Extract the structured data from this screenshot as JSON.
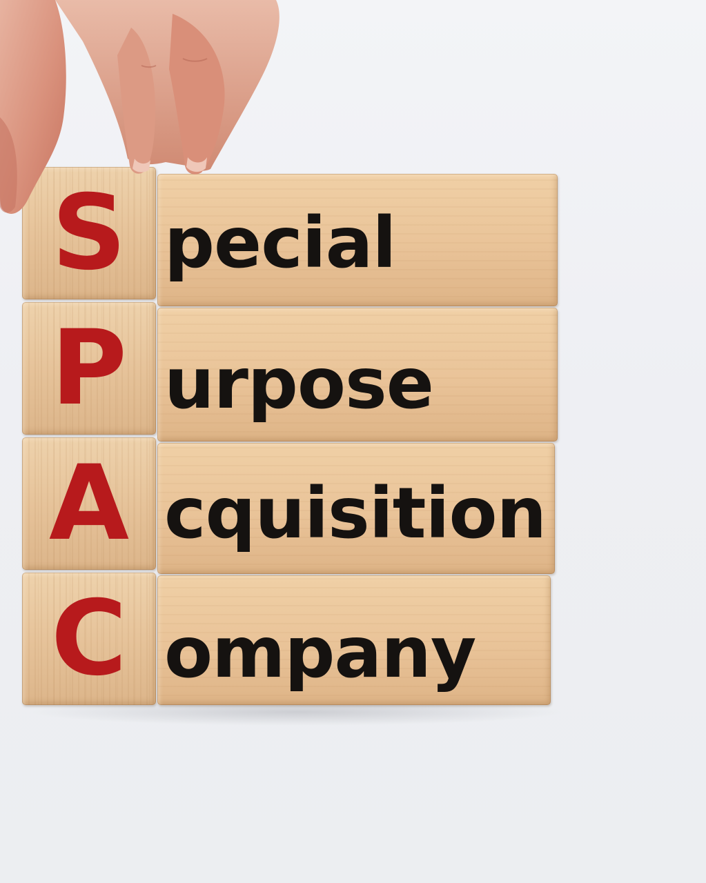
{
  "blocks": [
    {
      "letter": "S",
      "word": "pecial"
    },
    {
      "letter": "P",
      "word": "urpose"
    },
    {
      "letter": "A",
      "word": "cquisition"
    },
    {
      "letter": "C",
      "word": "ompany"
    }
  ],
  "colors": {
    "background": "#eff0f3",
    "wood": "#e8c59b",
    "letter_red": "#b71a1c",
    "word_dark": "#151210"
  },
  "icons": [
    "hand"
  ]
}
